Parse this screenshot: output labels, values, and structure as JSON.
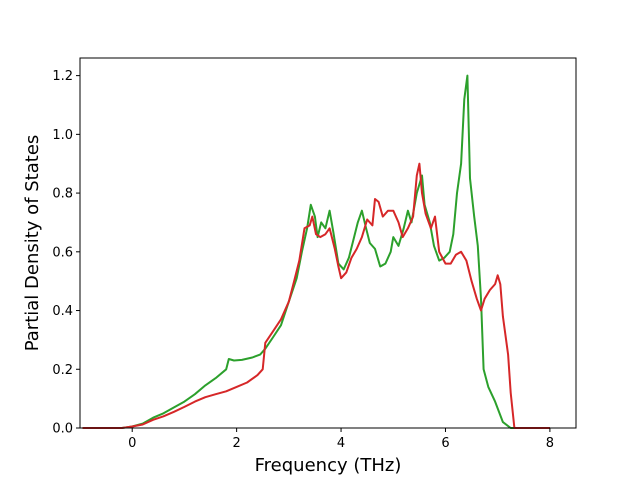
{
  "chart_data": {
    "type": "line",
    "title": "",
    "xlabel": "Frequency (THz)",
    "ylabel": "Partial Density of States",
    "xlim": [
      -1.0,
      8.5
    ],
    "ylim": [
      0.0,
      1.26
    ],
    "xticks": [
      0,
      2,
      4,
      6,
      8
    ],
    "xtick_labels": [
      "0",
      "2",
      "4",
      "6",
      "8"
    ],
    "yticks": [
      0.0,
      0.2,
      0.4,
      0.6,
      0.8,
      1.0,
      1.2
    ],
    "ytick_labels": [
      "0.0",
      "0.2",
      "0.4",
      "0.6",
      "0.8",
      "1.0",
      "1.2"
    ],
    "grid": false,
    "legend": "none",
    "series": [
      {
        "color": "#2ca02c",
        "points": [
          [
            -0.95,
            0.0
          ],
          [
            -0.2,
            0.0
          ],
          [
            0.0,
            0.005
          ],
          [
            0.2,
            0.015
          ],
          [
            0.4,
            0.035
          ],
          [
            0.6,
            0.05
          ],
          [
            0.8,
            0.07
          ],
          [
            1.0,
            0.09
          ],
          [
            1.2,
            0.115
          ],
          [
            1.4,
            0.145
          ],
          [
            1.6,
            0.17
          ],
          [
            1.8,
            0.2
          ],
          [
            1.85,
            0.235
          ],
          [
            1.95,
            0.23
          ],
          [
            2.1,
            0.232
          ],
          [
            2.3,
            0.24
          ],
          [
            2.45,
            0.25
          ],
          [
            2.55,
            0.27
          ],
          [
            2.7,
            0.31
          ],
          [
            2.85,
            0.35
          ],
          [
            3.0,
            0.43
          ],
          [
            3.15,
            0.51
          ],
          [
            3.25,
            0.6
          ],
          [
            3.35,
            0.68
          ],
          [
            3.42,
            0.76
          ],
          [
            3.5,
            0.72
          ],
          [
            3.55,
            0.65
          ],
          [
            3.62,
            0.7
          ],
          [
            3.7,
            0.68
          ],
          [
            3.78,
            0.74
          ],
          [
            3.85,
            0.67
          ],
          [
            3.95,
            0.56
          ],
          [
            4.05,
            0.54
          ],
          [
            4.15,
            0.58
          ],
          [
            4.25,
            0.65
          ],
          [
            4.32,
            0.7
          ],
          [
            4.4,
            0.74
          ],
          [
            4.48,
            0.68
          ],
          [
            4.55,
            0.63
          ],
          [
            4.65,
            0.61
          ],
          [
            4.75,
            0.55
          ],
          [
            4.85,
            0.56
          ],
          [
            4.95,
            0.6
          ],
          [
            5.0,
            0.65
          ],
          [
            5.1,
            0.62
          ],
          [
            5.2,
            0.68
          ],
          [
            5.28,
            0.74
          ],
          [
            5.35,
            0.7
          ],
          [
            5.45,
            0.8
          ],
          [
            5.55,
            0.86
          ],
          [
            5.6,
            0.76
          ],
          [
            5.7,
            0.7
          ],
          [
            5.78,
            0.62
          ],
          [
            5.88,
            0.57
          ],
          [
            5.98,
            0.58
          ],
          [
            6.08,
            0.6
          ],
          [
            6.15,
            0.66
          ],
          [
            6.22,
            0.8
          ],
          [
            6.3,
            0.9
          ],
          [
            6.36,
            1.12
          ],
          [
            6.42,
            1.2
          ],
          [
            6.47,
            0.85
          ],
          [
            6.55,
            0.72
          ],
          [
            6.62,
            0.62
          ],
          [
            6.68,
            0.44
          ],
          [
            6.73,
            0.2
          ],
          [
            6.82,
            0.14
          ],
          [
            6.95,
            0.09
          ],
          [
            7.1,
            0.02
          ],
          [
            7.25,
            0.0
          ],
          [
            8.0,
            0.0
          ]
        ]
      },
      {
        "color": "#d62728",
        "points": [
          [
            -0.95,
            0.0
          ],
          [
            -0.2,
            0.0
          ],
          [
            0.0,
            0.005
          ],
          [
            0.2,
            0.012
          ],
          [
            0.4,
            0.028
          ],
          [
            0.6,
            0.04
          ],
          [
            0.8,
            0.055
          ],
          [
            1.0,
            0.072
          ],
          [
            1.2,
            0.09
          ],
          [
            1.4,
            0.105
          ],
          [
            1.6,
            0.115
          ],
          [
            1.8,
            0.125
          ],
          [
            2.0,
            0.14
          ],
          [
            2.2,
            0.155
          ],
          [
            2.4,
            0.18
          ],
          [
            2.5,
            0.2
          ],
          [
            2.55,
            0.29
          ],
          [
            2.7,
            0.33
          ],
          [
            2.85,
            0.37
          ],
          [
            3.0,
            0.43
          ],
          [
            3.1,
            0.5
          ],
          [
            3.2,
            0.57
          ],
          [
            3.3,
            0.68
          ],
          [
            3.4,
            0.69
          ],
          [
            3.45,
            0.72
          ],
          [
            3.52,
            0.66
          ],
          [
            3.6,
            0.65
          ],
          [
            3.7,
            0.66
          ],
          [
            3.78,
            0.68
          ],
          [
            3.88,
            0.61
          ],
          [
            3.95,
            0.55
          ],
          [
            4.0,
            0.51
          ],
          [
            4.1,
            0.53
          ],
          [
            4.2,
            0.58
          ],
          [
            4.3,
            0.61
          ],
          [
            4.4,
            0.65
          ],
          [
            4.5,
            0.71
          ],
          [
            4.6,
            0.69
          ],
          [
            4.65,
            0.78
          ],
          [
            4.72,
            0.77
          ],
          [
            4.8,
            0.72
          ],
          [
            4.9,
            0.74
          ],
          [
            5.0,
            0.74
          ],
          [
            5.1,
            0.7
          ],
          [
            5.18,
            0.65
          ],
          [
            5.28,
            0.68
          ],
          [
            5.38,
            0.72
          ],
          [
            5.45,
            0.86
          ],
          [
            5.5,
            0.9
          ],
          [
            5.55,
            0.8
          ],
          [
            5.62,
            0.73
          ],
          [
            5.72,
            0.68
          ],
          [
            5.8,
            0.72
          ],
          [
            5.88,
            0.6
          ],
          [
            6.0,
            0.56
          ],
          [
            6.1,
            0.56
          ],
          [
            6.2,
            0.59
          ],
          [
            6.3,
            0.6
          ],
          [
            6.4,
            0.57
          ],
          [
            6.5,
            0.5
          ],
          [
            6.6,
            0.44
          ],
          [
            6.68,
            0.4
          ],
          [
            6.75,
            0.44
          ],
          [
            6.85,
            0.47
          ],
          [
            6.95,
            0.49
          ],
          [
            7.0,
            0.52
          ],
          [
            7.05,
            0.49
          ],
          [
            7.1,
            0.38
          ],
          [
            7.2,
            0.25
          ],
          [
            7.25,
            0.12
          ],
          [
            7.32,
            0.0
          ],
          [
            8.0,
            0.0
          ]
        ]
      }
    ]
  }
}
